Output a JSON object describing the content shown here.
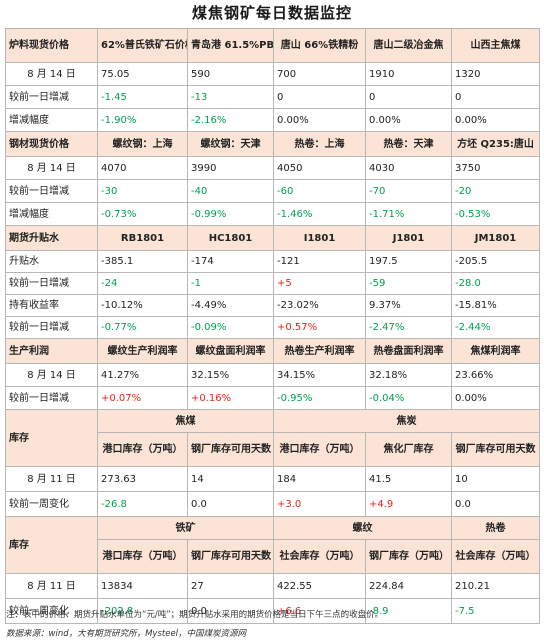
{
  "title": "煤焦钢矿每日数据监控",
  "sec1": {
    "header": [
      "炉料现货价格",
      "62%普氏铁矿石价格指数",
      "青岛港 61.5%PB 粉",
      "唐山 66%铁精粉",
      "唐山二级冶金焦",
      "山西主焦煤"
    ],
    "rows": [
      [
        "8 月 14 日",
        "75.05",
        "590",
        "700",
        "1910",
        "1320"
      ],
      [
        "较前一日增减",
        "-1.45",
        "-13",
        "0",
        "0",
        "0"
      ],
      [
        "增减幅度",
        "-1.90%",
        "-2.16%",
        "0.00%",
        "0.00%",
        "0.00%"
      ]
    ]
  },
  "sec2": {
    "header": [
      "钢材现货价格",
      "螺纹钢：上海",
      "螺纹钢：天津",
      "热卷：上海",
      "热卷：天津",
      "方坯 Q235:唐山"
    ],
    "rows": [
      [
        "8 月 14 日",
        "4070",
        "3990",
        "4050",
        "4030",
        "3750"
      ],
      [
        "较前一日增减",
        "-30",
        "-40",
        "-60",
        "-70",
        "-20"
      ],
      [
        "增减幅度",
        "-0.73%",
        "-0.99%",
        "-1.46%",
        "-1.71%",
        "-0.53%"
      ]
    ]
  },
  "sec3": {
    "header": [
      "期货升贴水",
      "RB1801",
      "HC1801",
      "I1801",
      "J1801",
      "JM1801"
    ],
    "rows": [
      [
        "升贴水",
        "-385.1",
        "-174",
        "-121",
        "197.5",
        "-205.5"
      ],
      [
        "较前一日增减",
        "-24",
        "-1",
        "+5",
        "-59",
        "-28.0"
      ],
      [
        "持有收益率",
        "-10.12%",
        "-4.49%",
        "-23.02%",
        "9.37%",
        "-15.81%"
      ],
      [
        "较前一日增减",
        "-0.77%",
        "-0.09%",
        "+0.57%",
        "-2.47%",
        "-2.44%"
      ]
    ]
  },
  "sec4": {
    "header": [
      "生产利润",
      "螺纹生产利润率",
      "螺纹盘面利润率",
      "热卷生产利润率",
      "热卷盘面利润率",
      "焦煤利润率"
    ],
    "rows": [
      [
        "8 月 14 日",
        "41.27%",
        "32.15%",
        "34.15%",
        "32.18%",
        "23.66%"
      ],
      [
        "较前一日增减",
        "+0.07%",
        "+0.16%",
        "-0.95%",
        "-0.04%",
        "0.00%"
      ]
    ]
  },
  "sec5": {
    "label": "库存",
    "group1": "焦煤",
    "group2": "焦炭",
    "sub": [
      "港口库存（万吨）",
      "钢厂库存可用天数",
      "港口库存（万吨）",
      "焦化厂库存",
      "钢厂库存可用天数"
    ],
    "rows": [
      [
        "8 月 11 日",
        "273.63",
        "14",
        "184",
        "41.5",
        "10"
      ],
      [
        "较前一周变化",
        "-26.8",
        "0.0",
        "+3.0",
        "+4.9",
        "0.0"
      ]
    ]
  },
  "sec6": {
    "label": "库存",
    "group1": "铁矿",
    "group2": "螺纹",
    "group3": "热卷",
    "sub": [
      "港口库存（万吨）",
      "钢厂库存可用天数",
      "社会库存（万吨）",
      "钢厂库存（万吨）",
      "社会库存（万吨）"
    ],
    "rows": [
      [
        "8 月 11 日",
        "13834",
        "27",
        "422.55",
        "224.84",
        "210.21"
      ],
      [
        "较前一周变化",
        "-202.8",
        "0.0",
        "+6.6",
        "-8.9",
        "-7.5"
      ]
    ]
  },
  "footnote": "注：表中的价格、期货升贴水单位为“元/吨”；期货升贴水采用的期货价格是当日下午三点的收盘价。",
  "source": "数据来源：wind，大有期货研究所，Mysteel，中国煤炭资源网",
  "colors": {
    "header_bg": "#fbe4d5",
    "negative": "#00a050",
    "positive": "#e8231a"
  }
}
